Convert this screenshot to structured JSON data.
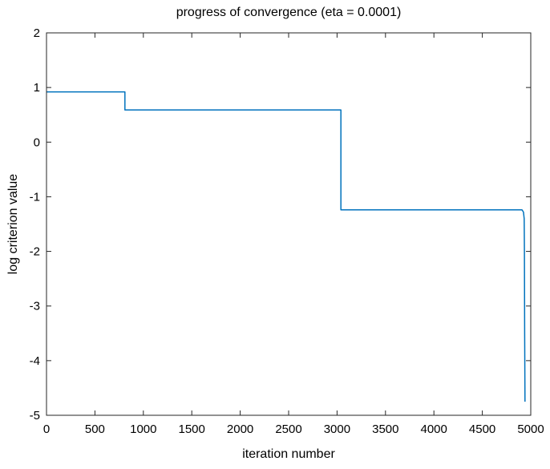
{
  "chart_data": {
    "type": "line",
    "title": "progress of convergence (eta = 0.0001)",
    "xlabel": "iteration number",
    "ylabel": "log criterion value",
    "xlim": [
      0,
      5000
    ],
    "ylim": [
      -5,
      2
    ],
    "xticks": [
      0,
      500,
      1000,
      1500,
      2000,
      2500,
      3000,
      3500,
      4000,
      4500,
      5000
    ],
    "yticks": [
      -5,
      -4,
      -3,
      -2,
      -1,
      0,
      1,
      2
    ],
    "grid": false,
    "series": [
      {
        "color": "#0072bd",
        "x": [
          0,
          810,
          810,
          3040,
          3040,
          4910,
          4925,
          4932,
          4935,
          4937,
          4940
        ],
        "y": [
          0.92,
          0.92,
          0.59,
          0.59,
          -1.24,
          -1.24,
          -1.28,
          -1.4,
          -2.0,
          -3.5,
          -4.75
        ]
      }
    ]
  }
}
